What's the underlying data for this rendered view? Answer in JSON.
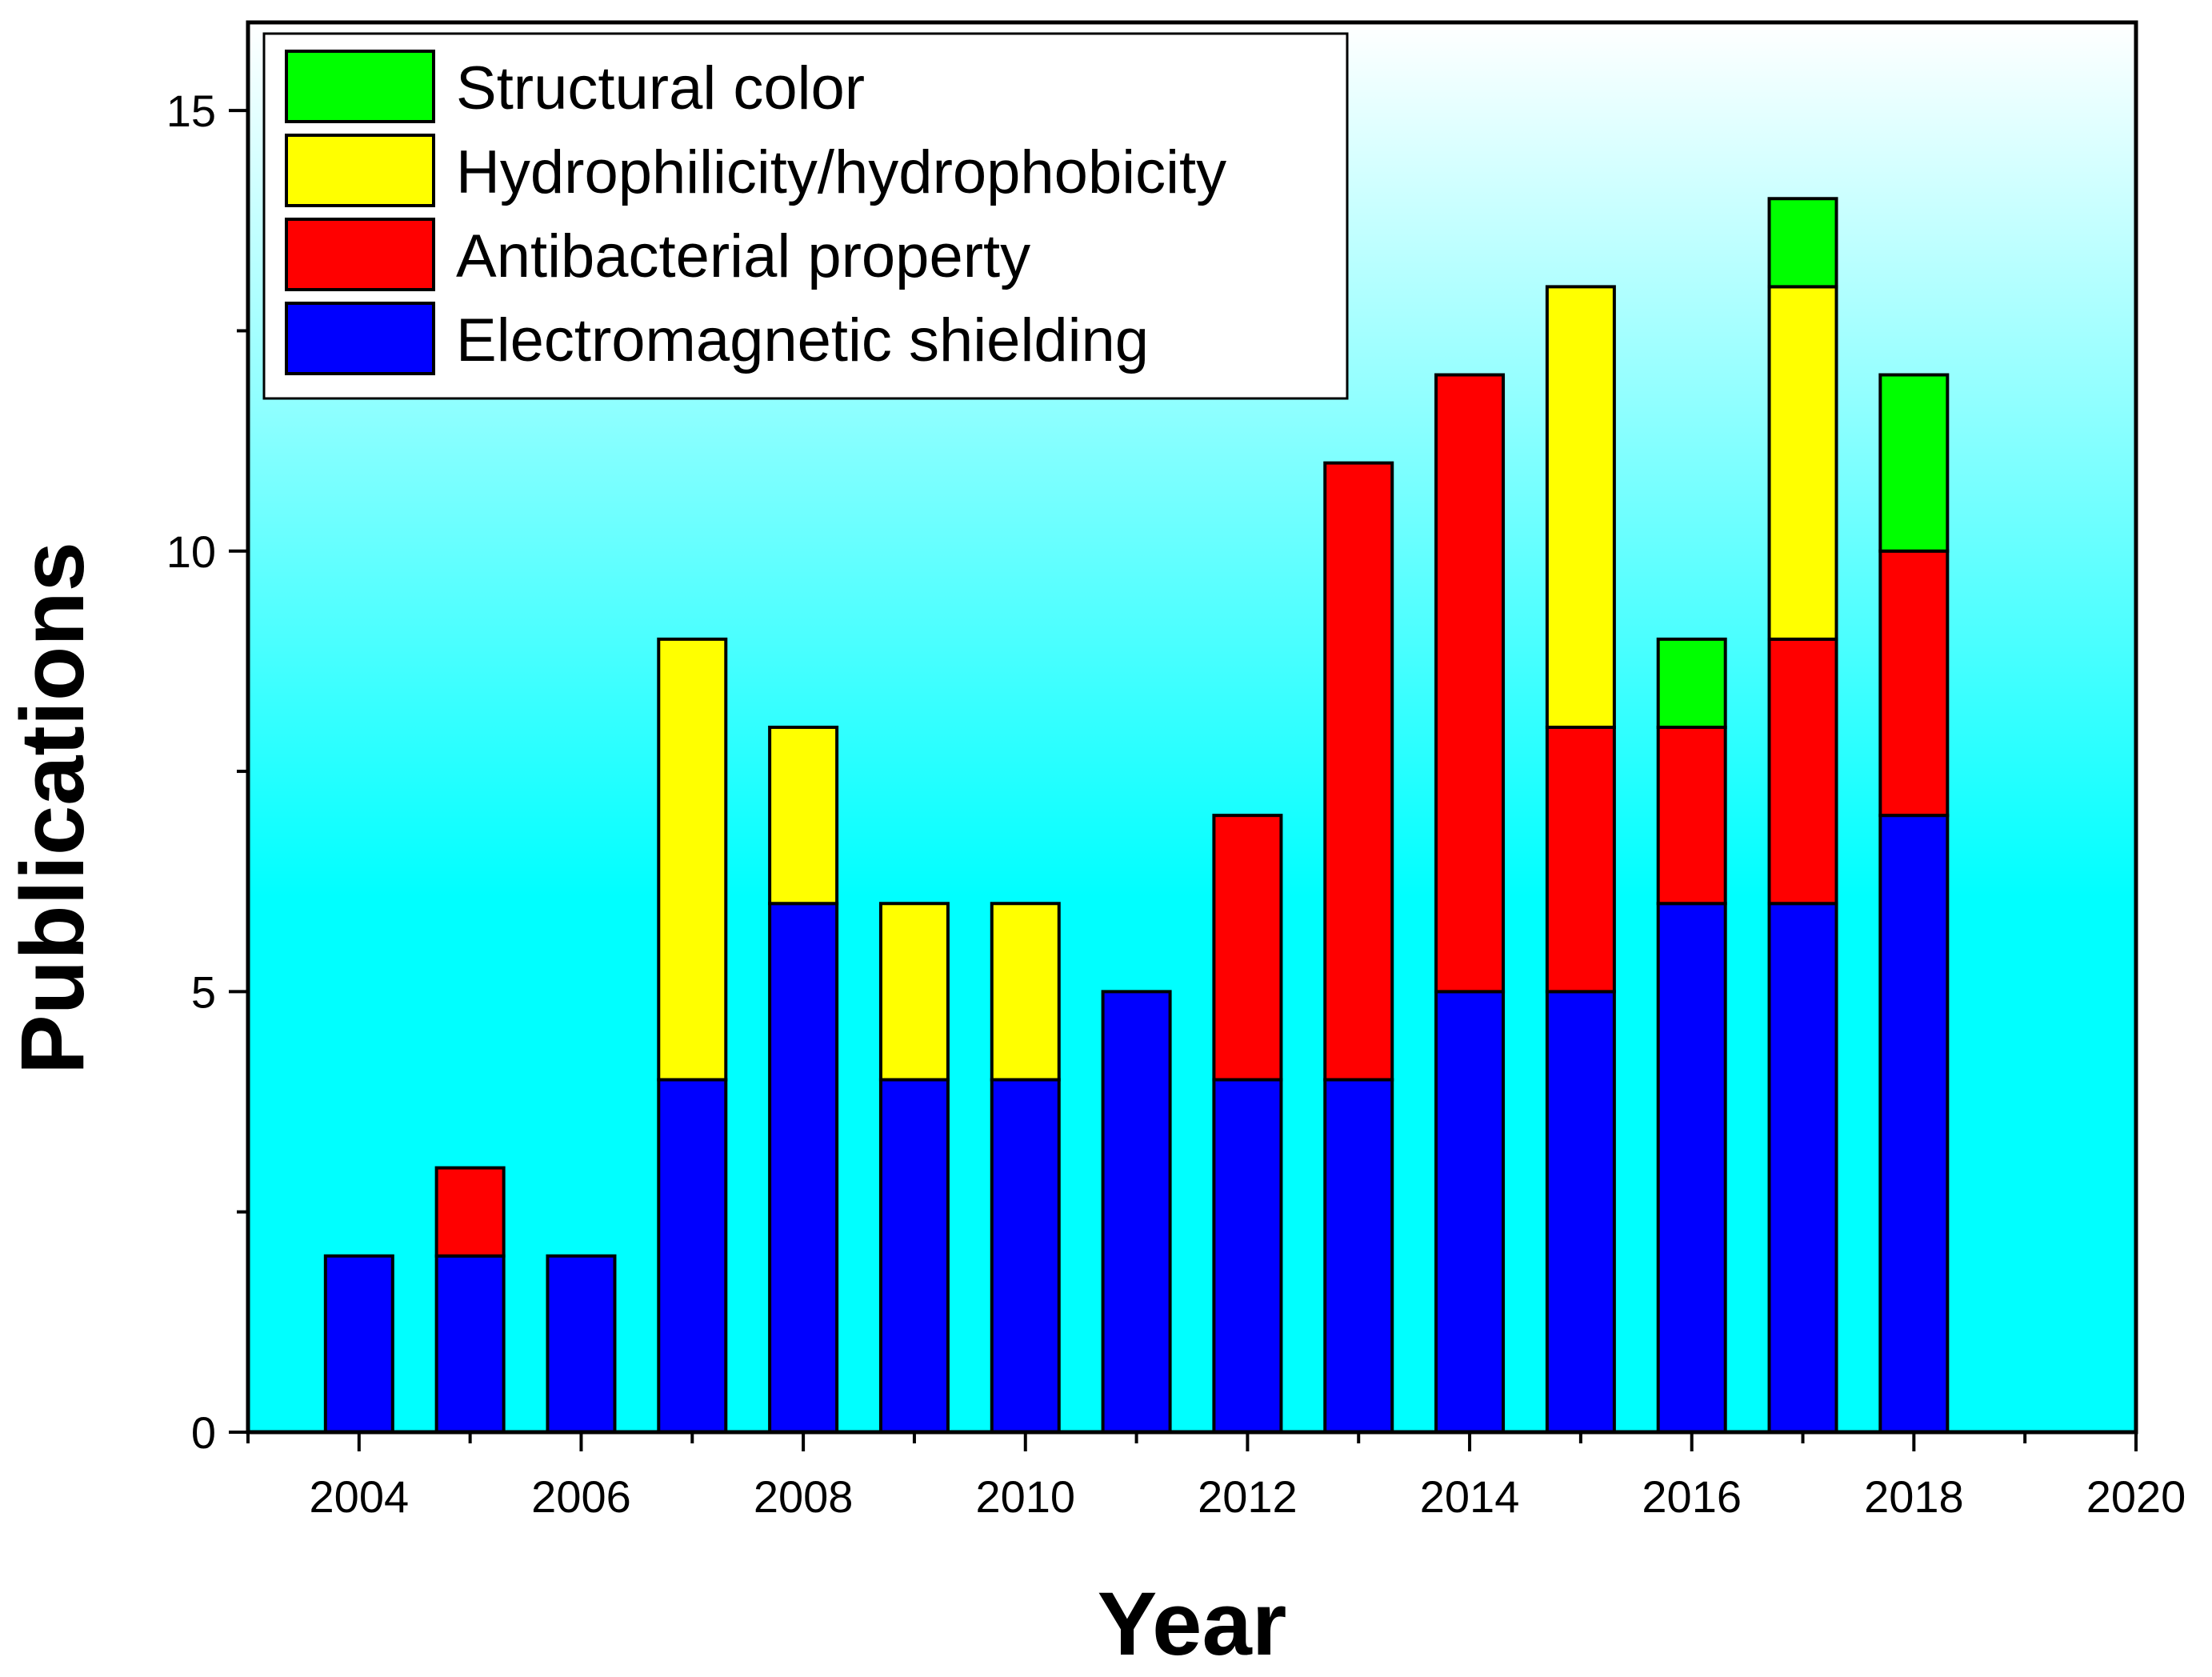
{
  "chart_data": {
    "type": "bar",
    "stacked": true,
    "title": "",
    "xlabel": "Year",
    "ylabel": "Publications",
    "xlim": [
      2003,
      2020
    ],
    "ylim": [
      0,
      16
    ],
    "xticks": [
      "2004",
      "2006",
      "2008",
      "2010",
      "2012",
      "2014",
      "2016",
      "2018",
      "2020"
    ],
    "yticks": [
      "0",
      "5",
      "10",
      "15"
    ],
    "categories": [
      "2004",
      "2005",
      "2006",
      "2007",
      "2008",
      "2009",
      "2010",
      "2011",
      "2012",
      "2013",
      "2014",
      "2015",
      "2016",
      "2017",
      "2018"
    ],
    "series": [
      {
        "name": "Electromagnetic shielding",
        "color": "#0000ff",
        "values": [
          2,
          2,
          2,
          4,
          6,
          4,
          4,
          5,
          4,
          4,
          5,
          5,
          6,
          6,
          7
        ]
      },
      {
        "name": "Antibacterial property",
        "color": "#ff0000",
        "values": [
          0,
          1,
          0,
          0,
          0,
          0,
          0,
          0,
          3,
          7,
          7,
          3,
          2,
          3,
          3
        ]
      },
      {
        "name": "Hydrophilicity/hydrophobicity",
        "color": "#ffff00",
        "values": [
          0,
          0,
          0,
          5,
          2,
          2,
          2,
          0,
          0,
          0,
          0,
          5,
          0,
          4,
          0
        ]
      },
      {
        "name": "Structural color",
        "color": "#00ff00",
        "values": [
          0,
          0,
          0,
          0,
          0,
          0,
          0,
          0,
          0,
          0,
          0,
          0,
          1,
          1,
          2
        ]
      }
    ],
    "legend_order": [
      "Structural color",
      "Hydrophilicity/hydrophobicity",
      "Antibacterial property",
      "Electromagnetic shielding"
    ],
    "legend_position": "top-left",
    "background_gradient": [
      "#ffffff",
      "#00ffff"
    ]
  }
}
